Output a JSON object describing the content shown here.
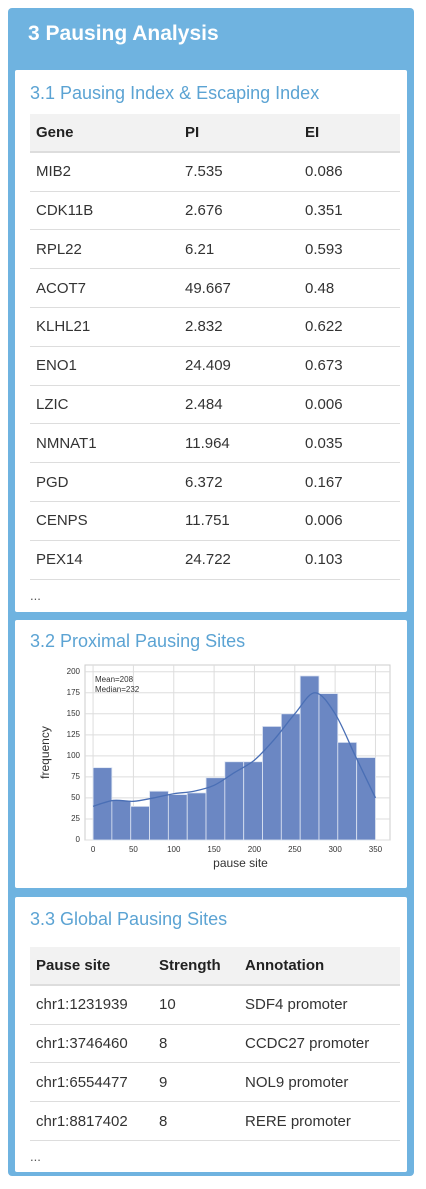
{
  "header": {
    "title": "3 Pausing Analysis"
  },
  "sections": [
    {
      "title": "3.1 Pausing Index & Escaping Index",
      "table": {
        "columns": [
          "Gene",
          "PI",
          "EI"
        ],
        "rows": [
          [
            "MIB2",
            7.535,
            0.086
          ],
          [
            "CDK11B",
            2.676,
            0.351
          ],
          [
            "RPL22",
            6.21,
            0.593
          ],
          [
            "ACOT7",
            49.667,
            0.48
          ],
          [
            "KLHL21",
            2.832,
            0.622
          ],
          [
            "ENO1",
            24.409,
            0.673
          ],
          [
            "LZIC",
            2.484,
            0.006
          ],
          [
            "NMNAT1",
            11.964,
            0.035
          ],
          [
            "PGD",
            6.372,
            0.167
          ],
          [
            "CENPS",
            11.751,
            0.006
          ],
          [
            "PEX14",
            24.722,
            0.103
          ]
        ]
      },
      "more": "..."
    },
    {
      "title": "3.2 Proximal Pausing Sites",
      "chart": {
        "type": "histogram",
        "bins": [
          0,
          23.3,
          46.7,
          70,
          93.3,
          116.7,
          140,
          163.3,
          186.7,
          210,
          233.3,
          256.7,
          280,
          303.3,
          326.7,
          350
        ],
        "values": [
          86,
          47,
          40,
          58,
          54,
          56,
          74,
          93,
          93,
          135,
          150,
          195,
          174,
          116,
          98
        ],
        "color": "#6b87c3",
        "kde": {
          "color": "#4a6fb5",
          "x": [
            0,
            25,
            50,
            75,
            100,
            125,
            150,
            175,
            200,
            225,
            250,
            275,
            300,
            325,
            350
          ],
          "values": [
            40,
            47,
            46,
            50,
            55,
            58,
            65,
            80,
            95,
            120,
            150,
            175,
            150,
            100,
            50
          ]
        },
        "annotations": [
          "Mean=208",
          "Median=232"
        ],
        "x_label": "pause site",
        "y_label": "frequency",
        "xlim": [
          -10,
          368
        ],
        "ylim": [
          0,
          208
        ],
        "xticks": [
          0,
          50,
          100,
          150,
          200,
          250,
          300,
          350
        ],
        "yticks": [
          0,
          25,
          50,
          75,
          100,
          125,
          150,
          175,
          200
        ],
        "grid": true
      }
    },
    {
      "title": "3.3 Global Pausing Sites",
      "table": {
        "columns": [
          "Pause site",
          "Strength",
          "Annotation"
        ],
        "rows": [
          [
            "chr1:1231939",
            10,
            "SDF4 promoter"
          ],
          [
            "chr1:3746460",
            8,
            "CCDC27 promoter"
          ],
          [
            "chr1:6554477",
            9,
            "NOL9 promoter"
          ],
          [
            "chr1:8817402",
            8,
            "RERE promoter"
          ]
        ]
      },
      "more": "..."
    }
  ]
}
